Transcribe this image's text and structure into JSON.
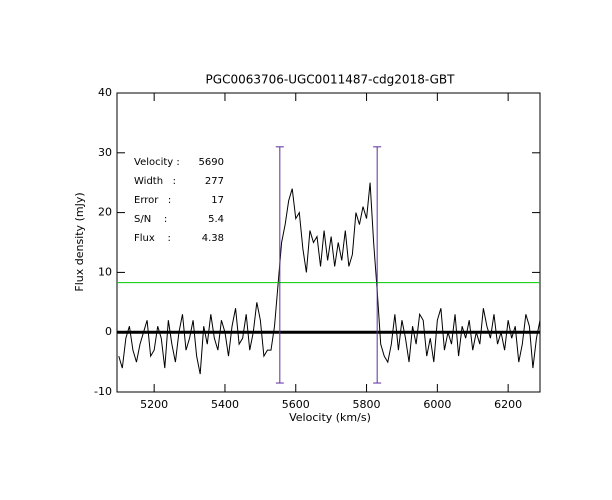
{
  "chart_data": {
    "type": "line",
    "title": "PGC0063706-UGC0011487-cdg2018-GBT",
    "xlabel": "Velocity (km/s)",
    "ylabel": "Flux density (mJy)",
    "xlim": [
      5095,
      6290
    ],
    "ylim": [
      -10,
      40
    ],
    "xticks": [
      5200,
      5400,
      5600,
      5800,
      6000,
      6200
    ],
    "yticks": [
      -10,
      0,
      10,
      20,
      30,
      40
    ],
    "x": [
      5100,
      5110,
      5120,
      5130,
      5140,
      5150,
      5160,
      5170,
      5180,
      5190,
      5200,
      5210,
      5220,
      5230,
      5240,
      5250,
      5260,
      5270,
      5280,
      5290,
      5300,
      5310,
      5320,
      5330,
      5340,
      5350,
      5360,
      5370,
      5380,
      5390,
      5400,
      5410,
      5420,
      5430,
      5440,
      5450,
      5460,
      5470,
      5480,
      5490,
      5500,
      5510,
      5520,
      5530,
      5540,
      5550,
      5560,
      5570,
      5580,
      5590,
      5600,
      5610,
      5620,
      5630,
      5640,
      5650,
      5660,
      5670,
      5680,
      5690,
      5700,
      5710,
      5720,
      5730,
      5740,
      5750,
      5760,
      5770,
      5780,
      5790,
      5800,
      5810,
      5820,
      5830,
      5840,
      5850,
      5860,
      5870,
      5880,
      5890,
      5900,
      5910,
      5920,
      5930,
      5940,
      5950,
      5960,
      5970,
      5980,
      5990,
      6000,
      6010,
      6020,
      6030,
      6040,
      6050,
      6060,
      6070,
      6080,
      6090,
      6100,
      6110,
      6120,
      6130,
      6140,
      6150,
      6160,
      6170,
      6180,
      6190,
      6200,
      6210,
      6220,
      6230,
      6240,
      6250,
      6260,
      6270,
      6280,
      6290
    ],
    "series": [
      {
        "color": "#000000",
        "values": [
          -4,
          -6,
          -1,
          1,
          -3,
          -5,
          -2,
          0,
          2,
          -4,
          -3,
          1,
          -1,
          -6,
          2,
          -2,
          -5,
          0,
          3,
          -3,
          -1,
          2,
          -4,
          -7,
          1,
          -2,
          3,
          -1,
          -3,
          2,
          0,
          -4,
          1,
          4,
          -2,
          -1,
          3,
          -3,
          0,
          5,
          2,
          -4,
          -3,
          -3,
          1,
          8,
          15,
          18,
          22,
          24,
          19,
          20,
          14,
          10,
          17,
          15,
          16,
          11,
          17,
          12,
          16,
          11,
          15,
          12,
          17,
          11,
          13,
          20,
          18,
          21,
          19,
          25,
          15,
          7,
          -2,
          -4,
          -5,
          -2,
          3,
          -3,
          2,
          -1,
          -5,
          1,
          -2,
          3,
          2,
          -4,
          -1,
          -5,
          2,
          4,
          -3,
          0,
          -2,
          3,
          -4,
          1,
          -1,
          2,
          -3,
          0,
          -2,
          4,
          1,
          -1,
          3,
          -2,
          0,
          -3,
          2,
          -1,
          1,
          -5,
          -2,
          3,
          1,
          -6,
          -1,
          2
        ]
      }
    ],
    "hlines": [
      {
        "value": 0,
        "color": "#000000"
      },
      {
        "value": 8.3,
        "color": "#00cc00"
      }
    ],
    "vlines": [
      {
        "x": 5555,
        "ymin": -8.5,
        "ymax": 31,
        "color": "#5a2ca0"
      },
      {
        "x": 5830,
        "ymin": -8.5,
        "ymax": 31,
        "color": "#5a2ca0"
      }
    ],
    "stats_color": "#3a1aa0",
    "stats": [
      {
        "label": "Velocity :",
        "value": 5690
      },
      {
        "label": "Width   :",
        "value": 277
      },
      {
        "label": "Error   :",
        "value": 17
      },
      {
        "label": "S/N    :",
        "value": 5.4
      },
      {
        "label": "Flux    :",
        "value": 4.38
      }
    ]
  }
}
